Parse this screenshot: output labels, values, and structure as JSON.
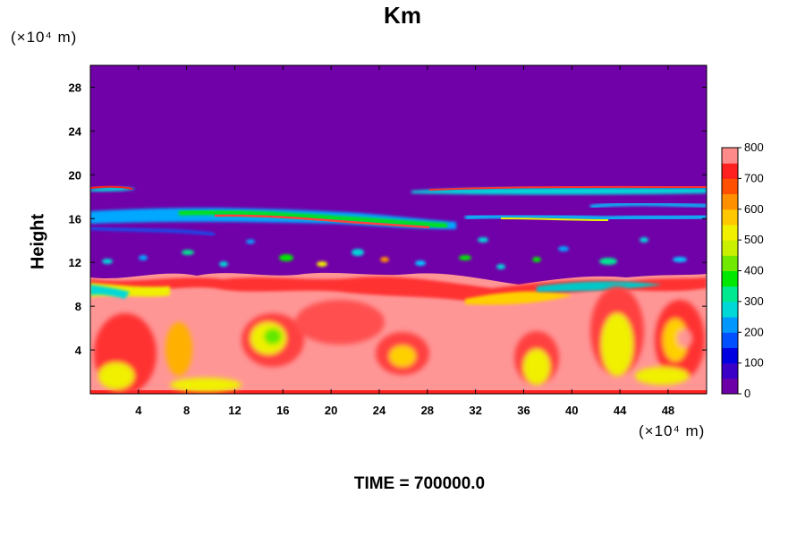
{
  "chart_data": {
    "type": "heatmap",
    "title": "Km",
    "ylabel": "Height",
    "y_unit": "(×10⁴ m)",
    "x_unit": "(×10⁴ m)",
    "x_ticks": [
      4,
      8,
      12,
      16,
      20,
      24,
      28,
      32,
      36,
      40,
      44,
      48
    ],
    "y_ticks": [
      4,
      8,
      12,
      16,
      20,
      24,
      28
    ],
    "xlim": [
      0,
      51.2
    ],
    "ylim": [
      0,
      30
    ],
    "colorbar": {
      "ticks": [
        0,
        100,
        200,
        300,
        400,
        500,
        600,
        700,
        800
      ],
      "range": [
        0,
        800
      ],
      "colors": [
        "#6e00a8",
        "#3a00c8",
        "#0000e0",
        "#0050ff",
        "#0098ff",
        "#00d8d8",
        "#00e890",
        "#00e800",
        "#70e800",
        "#c8f000",
        "#f0f000",
        "#ffc800",
        "#ff9000",
        "#ff5000",
        "#ff2020",
        "#ff8a8a"
      ]
    },
    "caption": "TIME = 700000.0"
  }
}
